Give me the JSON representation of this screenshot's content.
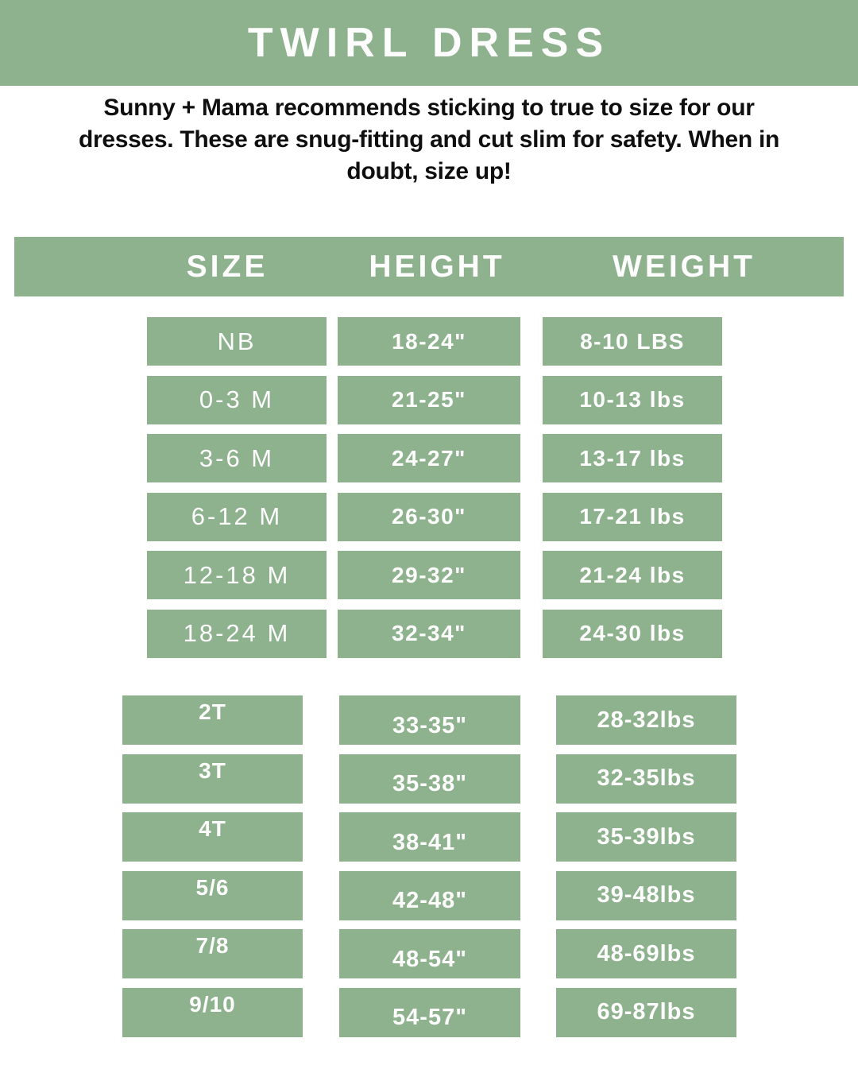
{
  "header": {
    "title": "TWIRL DRESS"
  },
  "intro": {
    "lines": [
      "Sunny + Mama recommends sticking to true to size for our",
      "dresses. These are snug-fitting and cut slim for safety. When in",
      "doubt, size up!"
    ]
  },
  "table": {
    "columns": [
      "SIZE",
      "HEIGHT",
      "WEIGHT"
    ],
    "infant_rows": [
      {
        "size": "NB",
        "height": "18-24\"",
        "weight": "8-10 LBS"
      },
      {
        "size": "0-3 M",
        "height": "21-25\"",
        "weight": "10-13 lbs"
      },
      {
        "size": "3-6 M",
        "height": "24-27\"",
        "weight": "13-17 lbs"
      },
      {
        "size": "6-12 M",
        "height": "26-30\"",
        "weight": "17-21 lbs"
      },
      {
        "size": "12-18 M",
        "height": "29-32\"",
        "weight": "21-24 lbs"
      },
      {
        "size": "18-24 M",
        "height": "32-34\"",
        "weight": "24-30 lbs"
      }
    ],
    "toddler_rows": [
      {
        "size": "2T",
        "height": "33-35\"",
        "weight": "28-32lbs"
      },
      {
        "size": "3T",
        "height": "35-38\"",
        "weight": "32-35lbs"
      },
      {
        "size": "4T",
        "height": "38-41\"",
        "weight": "35-39lbs"
      },
      {
        "size": "5/6",
        "height": "42-48\"",
        "weight": "39-48lbs"
      },
      {
        "size": "7/8",
        "height": "48-54\"",
        "weight": "48-69lbs"
      },
      {
        "size": "9/10",
        "height": "54-57\"",
        "weight": "69-87lbs"
      }
    ]
  },
  "colors": {
    "accent_green": "#8eb18e",
    "text_dark": "#0f0f0f",
    "text_light": "#fdfdfd",
    "background": "#ffffff"
  }
}
